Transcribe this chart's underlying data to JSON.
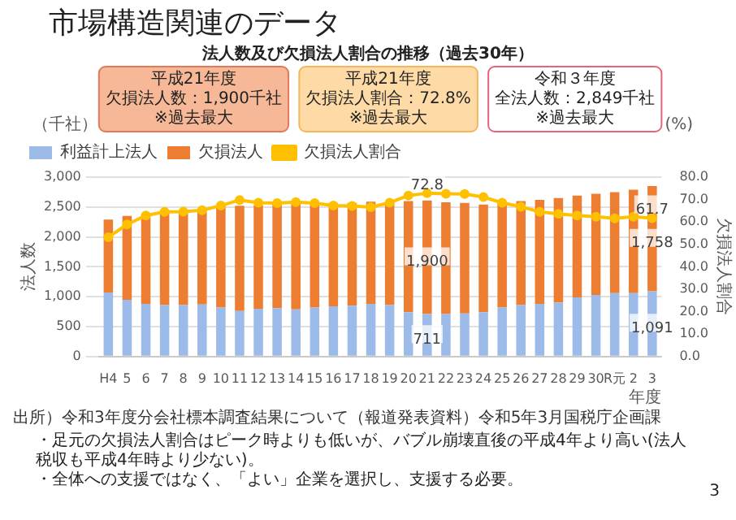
{
  "chart_data": {
    "type": "bar",
    "title": "市場構造関連のデータ",
    "subtitle": "法人数及び欠損法人割合の推移（過去30年）",
    "xlabel": "年度",
    "ylabel": "法人数",
    "y2label": "欠損法人割合",
    "categories": [
      "H4",
      "5",
      "6",
      "7",
      "8",
      "9",
      "10",
      "11",
      "12",
      "13",
      "14",
      "15",
      "16",
      "17",
      "18",
      "19",
      "20",
      "21",
      "22",
      "23",
      "24",
      "25",
      "26",
      "27",
      "28",
      "29",
      "30",
      "R元",
      "2",
      "3"
    ],
    "stacked": true,
    "series": [
      {
        "name": "利益計上法人",
        "color": "#9dbbe8",
        "values": [
          1070,
          950,
          880,
          860,
          860,
          870,
          820,
          760,
          800,
          810,
          790,
          820,
          840,
          850,
          880,
          860,
          740,
          711,
          710,
          720,
          740,
          820,
          860,
          880,
          900,
          990,
          1030,
          1060,
          1060,
          1091
        ],
        "value_labels": [
          null,
          null,
          null,
          null,
          null,
          null,
          null,
          null,
          null,
          null,
          null,
          null,
          null,
          null,
          null,
          null,
          null,
          "711",
          null,
          null,
          null,
          null,
          null,
          null,
          null,
          null,
          null,
          null,
          null,
          "1,091"
        ]
      },
      {
        "name": "欠損法人",
        "color": "#ed7d31",
        "values": [
          1220,
          1400,
          1490,
          1560,
          1570,
          1590,
          1700,
          1760,
          1730,
          1750,
          1770,
          1740,
          1730,
          1720,
          1710,
          1730,
          1860,
          1900,
          1870,
          1850,
          1800,
          1760,
          1740,
          1740,
          1750,
          1700,
          1690,
          1690,
          1730,
          1758
        ],
        "value_labels": [
          null,
          null,
          null,
          null,
          null,
          null,
          null,
          null,
          null,
          null,
          null,
          null,
          null,
          null,
          null,
          null,
          null,
          "1,900",
          null,
          null,
          null,
          null,
          null,
          null,
          null,
          null,
          null,
          null,
          null,
          "1,758"
        ]
      },
      {
        "name": "欠損法人割合",
        "type": "line",
        "axis": "y2",
        "color": "#ffc000",
        "values": [
          53.2,
          58.9,
          62.9,
          64.5,
          64.6,
          65.2,
          67.3,
          69.8,
          68.6,
          68.4,
          68.9,
          68.4,
          67.3,
          67.1,
          66.6,
          68.6,
          71.8,
          72.8,
          72.6,
          72.5,
          71.1,
          68.6,
          66.8,
          64.5,
          63.6,
          62.9,
          62.3,
          61.6,
          62.3,
          61.7
        ],
        "value_labels": [
          null,
          null,
          null,
          null,
          null,
          null,
          null,
          null,
          null,
          null,
          null,
          null,
          null,
          null,
          null,
          null,
          null,
          "72.8",
          null,
          null,
          null,
          null,
          null,
          null,
          null,
          null,
          null,
          null,
          null,
          "61.7"
        ]
      }
    ],
    "ylim": [
      0,
      3000
    ],
    "yticks": [
      {
        "value": 0,
        "label": "0"
      },
      {
        "value": 500,
        "label": "500"
      },
      {
        "value": 1000,
        "label": "1,000"
      },
      {
        "value": 1500,
        "label": "1,500"
      },
      {
        "value": 2000,
        "label": "2,000"
      },
      {
        "value": 2500,
        "label": "2,500"
      },
      {
        "value": 3000,
        "label": "3,000"
      }
    ],
    "y2lim": [
      0,
      80
    ],
    "y2ticks": [
      {
        "value": 0,
        "label": "0.0"
      },
      {
        "value": 10,
        "label": "10.0"
      },
      {
        "value": 20,
        "label": "20.0"
      },
      {
        "value": 30,
        "label": "30.0"
      },
      {
        "value": 40,
        "label": "40.0"
      },
      {
        "value": 50,
        "label": "50.0"
      },
      {
        "value": 60,
        "label": "60.0"
      },
      {
        "value": 70,
        "label": "70.0"
      },
      {
        "value": 80,
        "label": "80.0"
      }
    ],
    "grid": "y",
    "legend": "top left",
    "marker": "circle",
    "annotations": [
      "（千社）",
      "(%)",
      "平成21年度",
      "欠損法人割合：72.8%",
      "※過去最大",
      "令和３年度",
      "全法人数：2,849千社",
      "※過去最大",
      "平成21年度",
      "欠損法人数：1,900千社",
      "※過去最大",
      "出所）令和3年度分会社標本調査結果について（報道発表資料）令和5年3月国税庁企画課",
      "・足元の欠損法人割合はピーク時よりも低いが、バブル崩壊直後の平成4年より高い(法人税収も平成4年時より少ない)。",
      "・全体への支援ではなく、「よい」企業を選択し、支援する必要。",
      "3"
    ]
  }
}
